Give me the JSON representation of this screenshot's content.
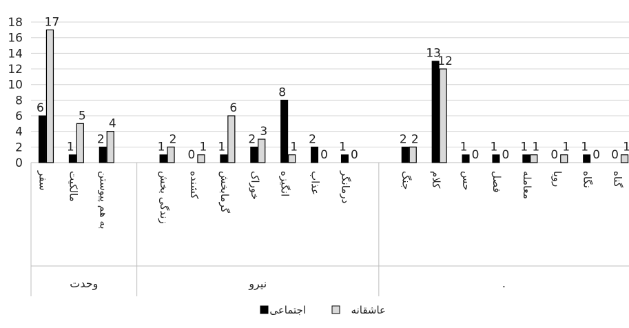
{
  "chart_data": {
    "type": "bar",
    "ylim": [
      0,
      18
    ],
    "yticks": [
      0,
      2,
      4,
      6,
      8,
      10,
      12,
      14,
      16,
      18
    ],
    "grid": true,
    "legend_position": "bottom",
    "groups": [
      {
        "label": "وحدت",
        "categories": [
          "سفر",
          "مالکیت",
          "به هم پیوستن"
        ]
      },
      {
        "label": "نیرو",
        "categories": [
          "زندگی بخش",
          "کشنده",
          "گرمابخش",
          "خوراک",
          "انگیزه",
          "عذاب",
          "درمانگر"
        ]
      },
      {
        "label": ".",
        "categories": [
          "جنگ",
          "کلام",
          "حس",
          "فصل",
          "معامله",
          "رویا",
          "نگاه",
          "گناه"
        ]
      }
    ],
    "series": [
      {
        "name": "اجتماعی",
        "color": "#000000",
        "values": [
          6,
          1,
          2,
          1,
          0,
          1,
          2,
          8,
          2,
          1,
          2,
          13,
          1,
          1,
          1,
          0,
          1,
          0
        ]
      },
      {
        "name": "عاشقانه",
        "color": "#d9d9d9",
        "values": [
          17,
          5,
          4,
          2,
          1,
          6,
          3,
          1,
          0,
          0,
          2,
          12,
          0,
          0,
          1,
          1,
          0,
          1
        ]
      }
    ]
  }
}
